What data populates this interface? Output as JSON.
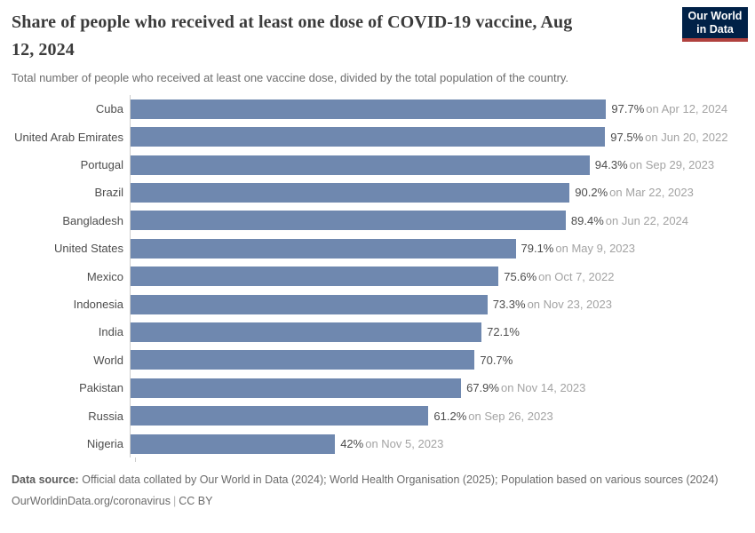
{
  "header": {
    "title_line1": "Share of people who received at least one dose of COVID-19 vaccine, Aug",
    "title_line2": "12, 2024",
    "subtitle": "Total number of people who received at least one vaccine dose, divided by the total population of the country.",
    "logo": {
      "line1": "Our World",
      "line2": "in Data"
    }
  },
  "chart_data": {
    "type": "bar",
    "orientation": "horizontal",
    "value_unit": "%",
    "xlim": [
      0,
      100
    ],
    "grid": false,
    "legend": "none",
    "rows": [
      {
        "country": "Cuba",
        "value": 97.7,
        "value_label": "97.7%",
        "date_label": "on Apr 12, 2024"
      },
      {
        "country": "United Arab Emirates",
        "value": 97.5,
        "value_label": "97.5%",
        "date_label": "on Jun 20, 2022"
      },
      {
        "country": "Portugal",
        "value": 94.3,
        "value_label": "94.3%",
        "date_label": "on Sep 29, 2023"
      },
      {
        "country": "Brazil",
        "value": 90.2,
        "value_label": "90.2%",
        "date_label": "on Mar 22, 2023"
      },
      {
        "country": "Bangladesh",
        "value": 89.4,
        "value_label": "89.4%",
        "date_label": "on Jun 22, 2024"
      },
      {
        "country": "United States",
        "value": 79.1,
        "value_label": "79.1%",
        "date_label": "on May 9, 2023"
      },
      {
        "country": "Mexico",
        "value": 75.6,
        "value_label": "75.6%",
        "date_label": "on Oct 7, 2022"
      },
      {
        "country": "Indonesia",
        "value": 73.3,
        "value_label": "73.3%",
        "date_label": "on Nov 23, 2023"
      },
      {
        "country": "India",
        "value": 72.1,
        "value_label": "72.1%",
        "date_label": ""
      },
      {
        "country": "World",
        "value": 70.7,
        "value_label": "70.7%",
        "date_label": ""
      },
      {
        "country": "Pakistan",
        "value": 67.9,
        "value_label": "67.9%",
        "date_label": "on Nov 14, 2023"
      },
      {
        "country": "Russia",
        "value": 61.2,
        "value_label": "61.2%",
        "date_label": "on Sep 26, 2023"
      },
      {
        "country": "Nigeria",
        "value": 42,
        "value_label": "42%",
        "date_label": "on Nov 5, 2023"
      }
    ]
  },
  "footer": {
    "source_label": "Data source:",
    "source_text": "Official data collated by Our World in Data (2024); World Health Organisation (2025); Population based on various sources (2024)",
    "link_text": "OurWorldinData.org/coronavirus",
    "separator": "|",
    "license": "CC BY"
  },
  "colors": {
    "bar": "#6f88af",
    "axis": "#cdcdcd",
    "logo_navy": "#002147",
    "logo_red": "#b0413e",
    "title_text": "#3b3b3b",
    "muted_text": "#a3a3a3"
  }
}
